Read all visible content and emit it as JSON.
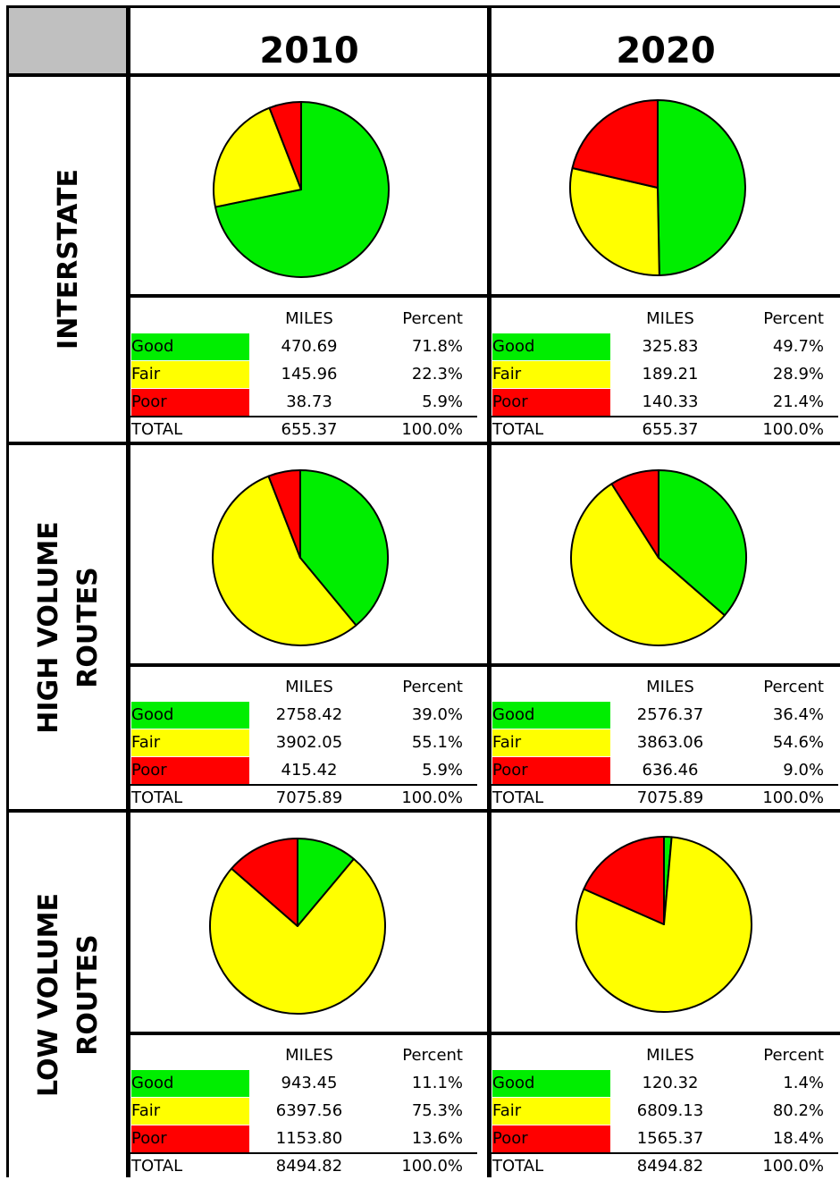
{
  "years": [
    "2010",
    "2020"
  ],
  "rows": [
    {
      "label_lines": [
        "INTERSTATE"
      ]
    },
    {
      "label_lines": [
        "HIGH VOLUME",
        "ROUTES"
      ]
    },
    {
      "label_lines": [
        "LOW VOLUME",
        "ROUTES"
      ]
    }
  ],
  "colors": {
    "Good": "#00ee00",
    "Fair": "#ffff00",
    "Poor": "#ff0000"
  },
  "table_headers": {
    "miles": "MILES",
    "percent": "Percent"
  },
  "chart_data": [
    {
      "type": "pie",
      "row": "INTERSTATE",
      "year": "2010",
      "slices": [
        {
          "label": "Good",
          "miles": "470.69",
          "percent": "71.8%",
          "value": 71.8
        },
        {
          "label": "Fair",
          "miles": "145.96",
          "percent": "22.3%",
          "value": 22.3
        },
        {
          "label": "Poor",
          "miles": "38.73",
          "percent": "5.9%",
          "value": 5.9
        }
      ],
      "total": {
        "label": "TOTAL",
        "miles": "655.37",
        "percent": "100.0%"
      }
    },
    {
      "type": "pie",
      "row": "INTERSTATE",
      "year": "2020",
      "slices": [
        {
          "label": "Good",
          "miles": "325.83",
          "percent": "49.7%",
          "value": 49.7
        },
        {
          "label": "Fair",
          "miles": "189.21",
          "percent": "28.9%",
          "value": 28.9
        },
        {
          "label": "Poor",
          "miles": "140.33",
          "percent": "21.4%",
          "value": 21.4
        }
      ],
      "total": {
        "label": "TOTAL",
        "miles": "655.37",
        "percent": "100.0%"
      }
    },
    {
      "type": "pie",
      "row": "HIGH VOLUME ROUTES",
      "year": "2010",
      "slices": [
        {
          "label": "Good",
          "miles": "2758.42",
          "percent": "39.0%",
          "value": 39.0
        },
        {
          "label": "Fair",
          "miles": "3902.05",
          "percent": "55.1%",
          "value": 55.1
        },
        {
          "label": "Poor",
          "miles": "415.42",
          "percent": "5.9%",
          "value": 5.9
        }
      ],
      "total": {
        "label": "TOTAL",
        "miles": "7075.89",
        "percent": "100.0%"
      }
    },
    {
      "type": "pie",
      "row": "HIGH VOLUME ROUTES",
      "year": "2020",
      "slices": [
        {
          "label": "Good",
          "miles": "2576.37",
          "percent": "36.4%",
          "value": 36.4
        },
        {
          "label": "Fair",
          "miles": "3863.06",
          "percent": "54.6%",
          "value": 54.6
        },
        {
          "label": "Poor",
          "miles": "636.46",
          "percent": "9.0%",
          "value": 9.0
        }
      ],
      "total": {
        "label": "TOTAL",
        "miles": "7075.89",
        "percent": "100.0%"
      }
    },
    {
      "type": "pie",
      "row": "LOW VOLUME ROUTES",
      "year": "2010",
      "slices": [
        {
          "label": "Good",
          "miles": "943.45",
          "percent": "11.1%",
          "value": 11.1
        },
        {
          "label": "Fair",
          "miles": "6397.56",
          "percent": "75.3%",
          "value": 75.3
        },
        {
          "label": "Poor",
          "miles": "1153.80",
          "percent": "13.6%",
          "value": 13.6
        }
      ],
      "total": {
        "label": "TOTAL",
        "miles": "8494.82",
        "percent": "100.0%"
      }
    },
    {
      "type": "pie",
      "row": "LOW VOLUME ROUTES",
      "year": "2020",
      "slices": [
        {
          "label": "Good",
          "miles": "120.32",
          "percent": "1.4%",
          "value": 1.4
        },
        {
          "label": "Fair",
          "miles": "6809.13",
          "percent": "80.2%",
          "value": 80.2
        },
        {
          "label": "Poor",
          "miles": "1565.37",
          "percent": "18.4%",
          "value": 18.4
        }
      ],
      "total": {
        "label": "TOTAL",
        "miles": "8494.82",
        "percent": "100.0%"
      }
    }
  ]
}
